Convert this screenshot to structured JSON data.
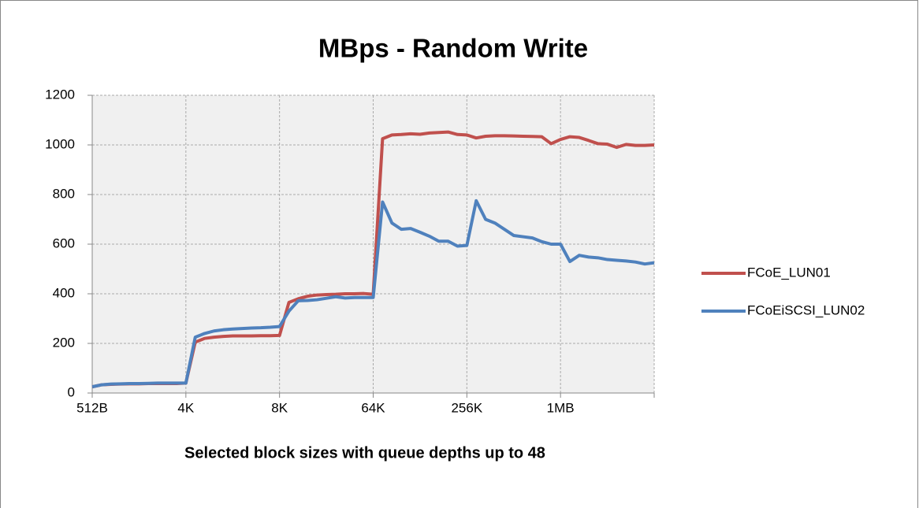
{
  "chart_data": {
    "type": "line",
    "title": "MBps -  Random Write",
    "x_label": "Selected block sizes with queue depths up to 48",
    "categories": [
      "512B",
      null,
      null,
      null,
      null,
      null,
      null,
      null,
      null,
      null,
      "4K",
      null,
      null,
      null,
      null,
      null,
      null,
      null,
      null,
      null,
      "8K",
      null,
      null,
      null,
      null,
      null,
      null,
      null,
      null,
      null,
      "64K",
      null,
      null,
      null,
      null,
      null,
      null,
      null,
      null,
      null,
      "256K",
      null,
      null,
      null,
      null,
      null,
      null,
      null,
      null,
      null,
      "1MB",
      null,
      null,
      null,
      null,
      null,
      null,
      null,
      null,
      null,
      null
    ],
    "series": [
      {
        "name": "FCoE_LUN01",
        "color": "#c0504d",
        "values": [
          25,
          33,
          35,
          36,
          37,
          37,
          38,
          38,
          38,
          38,
          40,
          205,
          220,
          225,
          228,
          230,
          230,
          230,
          231,
          231,
          232,
          365,
          380,
          390,
          395,
          397,
          398,
          400,
          400,
          401,
          398,
          1025,
          1040,
          1042,
          1045,
          1043,
          1048,
          1050,
          1052,
          1042,
          1040,
          1028,
          1035,
          1037,
          1037,
          1036,
          1035,
          1034,
          1033,
          1005,
          1022,
          1033,
          1030,
          1018,
          1005,
          1003,
          990,
          1002,
          998,
          998,
          1000
        ]
      },
      {
        "name": "FCoEiSCSI_LUN02",
        "color": "#4f81bd",
        "values": [
          25,
          33,
          36,
          37,
          38,
          38,
          39,
          40,
          40,
          40,
          40,
          225,
          240,
          250,
          255,
          258,
          260,
          262,
          263,
          265,
          268,
          330,
          372,
          373,
          376,
          382,
          388,
          383,
          385,
          385,
          385,
          770,
          685,
          660,
          663,
          648,
          632,
          612,
          612,
          592,
          595,
          775,
          700,
          685,
          660,
          635,
          630,
          625,
          610,
          600,
          600,
          530,
          555,
          548,
          545,
          538,
          535,
          532,
          528,
          520,
          525
        ]
      }
    ],
    "ylim": [
      0,
      1200
    ],
    "yticks": [
      0,
      200,
      400,
      600,
      800,
      1000,
      1200
    ],
    "grid": true,
    "legend": "right"
  }
}
